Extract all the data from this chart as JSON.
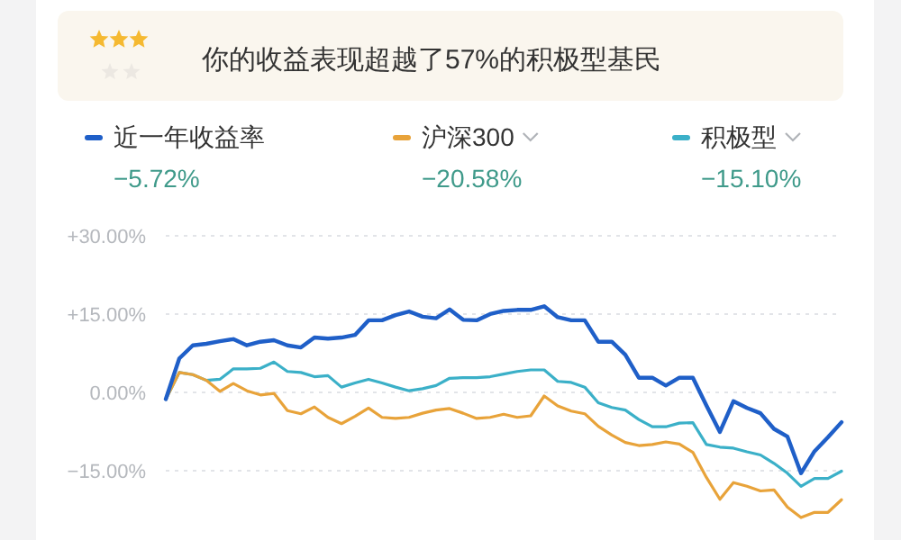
{
  "chart_data": {
    "type": "line",
    "title": "你的收益表现超越了57%的积极型基民",
    "annotations": [
      "−5.72%",
      "−20.58%",
      "−15.10%"
    ],
    "ylim": [
      -28.3,
      30
    ],
    "yticks": [
      {
        "value": 30,
        "label": "+30.00%"
      },
      {
        "value": 15,
        "label": "+15.00%"
      },
      {
        "value": 0,
        "label": "0.00%"
      },
      {
        "value": -15,
        "label": "−15.00%"
      }
    ],
    "categories": [
      null,
      null,
      null,
      null,
      null,
      null,
      null,
      null,
      null,
      null,
      null,
      null,
      null,
      null,
      null,
      null,
      null,
      null,
      null,
      null,
      null,
      null,
      null,
      null,
      null,
      null,
      null,
      null,
      null,
      null,
      null,
      null,
      null,
      null,
      null,
      null,
      null,
      null,
      null,
      null,
      null,
      null,
      null,
      null,
      null,
      null,
      null,
      null,
      null,
      null,
      null
    ],
    "tick_labels": "y",
    "grid": "y",
    "legend": "top",
    "line_style": "solid",
    "series": [
      {
        "name": "近一年收益率",
        "color": "#1f5fc8",
        "values": [
          -1.3,
          6.5,
          9.0,
          9.3,
          9.8,
          10.2,
          9.0,
          9.7,
          10.0,
          9.0,
          8.6,
          10.5,
          10.3,
          10.5,
          11.0,
          13.8,
          13.8,
          14.8,
          15.5,
          14.5,
          14.2,
          15.9,
          13.9,
          13.8,
          15.0,
          15.6,
          15.8,
          15.8,
          16.5,
          14.4,
          13.8,
          13.8,
          9.7,
          9.7,
          7.2,
          2.8,
          2.8,
          1.3,
          2.8,
          2.8,
          -2.5,
          -7.6,
          -1.7,
          -3.0,
          -4.0,
          -7.0,
          -8.5,
          -15.5,
          -11.3,
          -8.6,
          -5.72
        ]
      },
      {
        "name": "沪深300",
        "color": "#e8a33a",
        "values": [
          -1.3,
          3.8,
          3.4,
          2.3,
          0.2,
          1.7,
          0.3,
          -0.5,
          -0.2,
          -3.5,
          -4.1,
          -2.8,
          -4.8,
          -6.0,
          -4.6,
          -3.0,
          -4.8,
          -5.0,
          -4.8,
          -4.0,
          -3.4,
          -3.1,
          -4.0,
          -5.0,
          -4.8,
          -4.2,
          -4.8,
          -4.5,
          -0.7,
          -2.6,
          -3.6,
          -4.1,
          -6.5,
          -8.2,
          -9.6,
          -10.2,
          -10.0,
          -9.5,
          -9.9,
          -11.5,
          -16.3,
          -20.5,
          -17.3,
          -18.0,
          -18.9,
          -18.7,
          -22.0,
          -24.0,
          -23.0,
          -23.0,
          -20.58
        ]
      },
      {
        "name": "积极型",
        "color": "#3bb0c8",
        "values": [
          -1.3,
          3.8,
          3.4,
          2.3,
          2.5,
          4.5,
          4.5,
          4.6,
          5.8,
          4.0,
          3.8,
          3.0,
          3.2,
          1.0,
          1.8,
          2.5,
          1.8,
          1.0,
          0.3,
          0.7,
          1.3,
          2.7,
          2.8,
          2.8,
          3.0,
          3.5,
          4.0,
          4.3,
          4.3,
          2.1,
          1.9,
          1.0,
          -2.0,
          -2.9,
          -3.4,
          -5.2,
          -6.6,
          -6.6,
          -5.9,
          -5.8,
          -10.0,
          -10.5,
          -10.7,
          -11.4,
          -12.0,
          -13.6,
          -15.5,
          -18.0,
          -16.5,
          -16.5,
          -15.1
        ]
      }
    ]
  }
}
